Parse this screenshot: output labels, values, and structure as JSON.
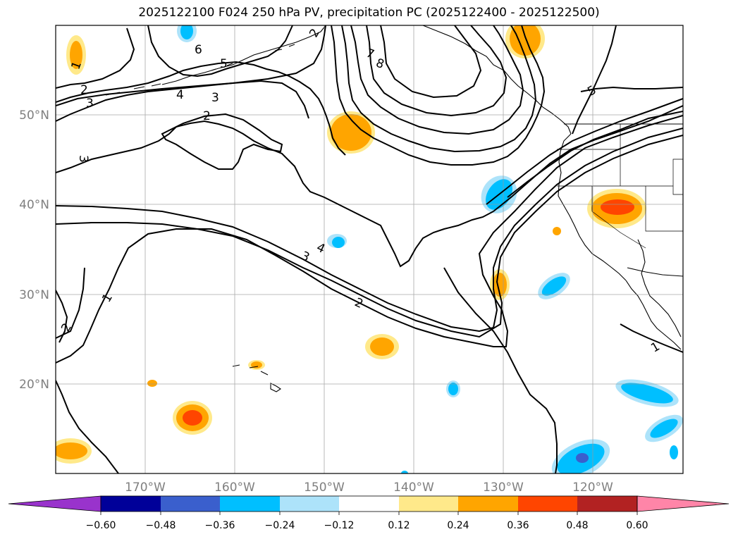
{
  "title": "2025122100 F024 250 hPa PV, precipitation PC (2025122400 - 2025122500)",
  "lat_labels": [
    "50°N",
    "40°N",
    "30°N",
    "20°N"
  ],
  "lon_labels": [
    "170°W",
    "160°W",
    "150°W",
    "140°W",
    "130°W",
    "120°W"
  ],
  "colorbar": {
    "ticks": [
      "−0.60",
      "−0.48",
      "−0.36",
      "−0.24",
      "−0.12",
      "0.12",
      "0.24",
      "0.36",
      "0.48",
      "0.60"
    ],
    "colors": [
      "#9933cc",
      "#000099",
      "#3a5fcd",
      "#00bfff",
      "#ade3fa",
      "#ffffff",
      "#ffe98a",
      "#ffa500",
      "#ff4500",
      "#b22222",
      "#ff85a8"
    ]
  },
  "pv_contour_labels": [
    "2",
    "3",
    "6",
    "5",
    "4",
    "3",
    "2",
    "3",
    "7",
    "8",
    "5",
    "2",
    "3",
    "4",
    "1",
    "2",
    "1",
    "1",
    "2"
  ],
  "styles": {
    "positive_light": "#ffe98a",
    "positive_mid": "#ffa500",
    "positive_strong": "#ff4500",
    "negative_light": "#ade3fa",
    "negative_mid": "#00bfff",
    "negative_strong": "#3a5fcd"
  }
}
